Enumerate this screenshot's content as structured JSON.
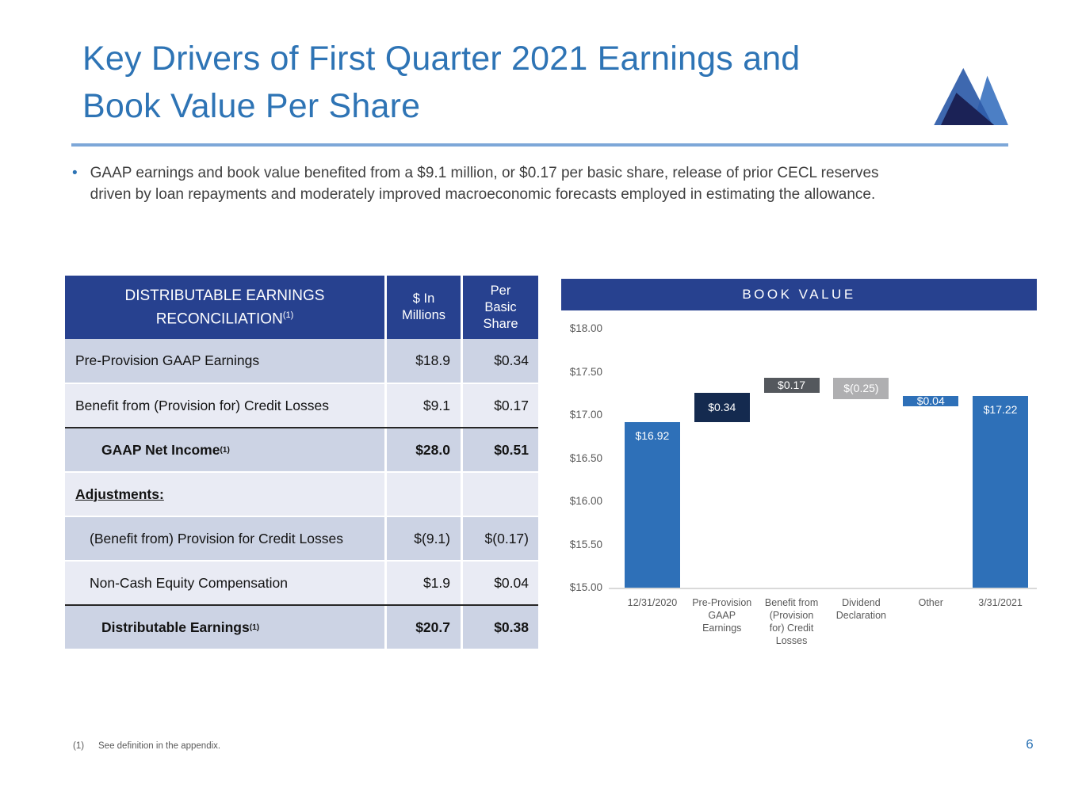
{
  "slide": {
    "title_line1": "Key Drivers of First Quarter 2021 Earnings and",
    "title_line2": "Book Value Per Share",
    "bullet_line1": "GAAP earnings and book value benefited from a $9.1 million, or $0.17 per basic share, release of prior CECL reserves",
    "bullet_line2": "driven by loan repayments and moderately improved macroeconomic forecasts employed in estimating the allowance.",
    "bullet_marker": "•",
    "footnote_marker": "(1)",
    "footnote_text": "See definition in the appendix.",
    "page_number": "6"
  },
  "logo": {
    "name": "mountain-logo"
  },
  "table": {
    "header": {
      "title_line1": "DISTRIBUTABLE EARNINGS",
      "title_line2": "RECONCILIATION",
      "title_sup": "(1)",
      "col2": "$ In\nMillions",
      "col3": "Per\nBasic\nShare"
    },
    "rows": [
      {
        "label": "Pre-Provision GAAP Earnings",
        "millions": "$18.9",
        "per_share": "$0.34"
      },
      {
        "label": "Benefit from (Provision for) Credit Losses",
        "millions": "$9.1",
        "per_share": "$0.17"
      },
      {
        "label": "GAAP Net Income",
        "sup": "(1)",
        "millions": "$28.0",
        "per_share": "$0.51"
      },
      {
        "label": "Adjustments:",
        "millions": "",
        "per_share": ""
      },
      {
        "label": "(Benefit from) Provision for Credit Losses",
        "millions": "$(9.1)",
        "per_share": "$(0.17)"
      },
      {
        "label": "Non-Cash Equity Compensation",
        "millions": "$1.9",
        "per_share": "$0.04"
      },
      {
        "label": "Distributable Earnings",
        "sup": "(1)",
        "millions": "$20.7",
        "per_share": "$0.38"
      }
    ]
  },
  "chart_data": {
    "type": "bar",
    "subtype": "waterfall",
    "title": "BOOK VALUE",
    "categories": [
      "12/31/2020",
      "Pre-Provision GAAP Earnings",
      "Benefit from (Provision for) Credit Losses",
      "Dividend Declaration",
      "Other",
      "3/31/2021"
    ],
    "category_display": [
      "12/31/2020",
      "Pre-Provision\nGAAP\nEarnings",
      "Benefit from\n(Provision\nfor) Credit\nLosses",
      "Dividend\nDeclaration",
      "Other",
      "3/31/2021"
    ],
    "values": [
      16.92,
      0.34,
      0.17,
      -0.25,
      0.04,
      17.22
    ],
    "bar_types": [
      "total",
      "delta",
      "delta",
      "delta",
      "delta",
      "total"
    ],
    "data_labels": [
      "$16.92",
      "$0.34",
      "$0.17",
      "$(0.25)",
      "$0.04",
      "$17.22"
    ],
    "bar_colors": [
      "#2E70B8",
      "#142A4F",
      "#54585D",
      "#AFAFB1",
      "#2E70B8",
      "#2E70B8"
    ],
    "ylim": [
      15.0,
      18.0
    ],
    "ytick_step": 0.5,
    "ytick_labels": [
      "$18.00",
      "$17.50",
      "$17.00",
      "$16.50",
      "$16.00",
      "$15.50",
      "$15.00"
    ],
    "xlabel": "",
    "ylabel": "",
    "grid": false,
    "legend": false
  },
  "colors": {
    "accent_blue": "#2E74B5",
    "header_blue": "#27418F",
    "divider_blue": "#7DA7D8",
    "row_shade_dark": "#CCD3E4",
    "row_shade_light": "#E9EBF4",
    "bar_blue": "#2E70B8",
    "bar_navy": "#142A4F",
    "bar_dark_gray": "#54585D",
    "bar_light_gray": "#AFAFB1",
    "axis_text_gray": "#595959"
  }
}
